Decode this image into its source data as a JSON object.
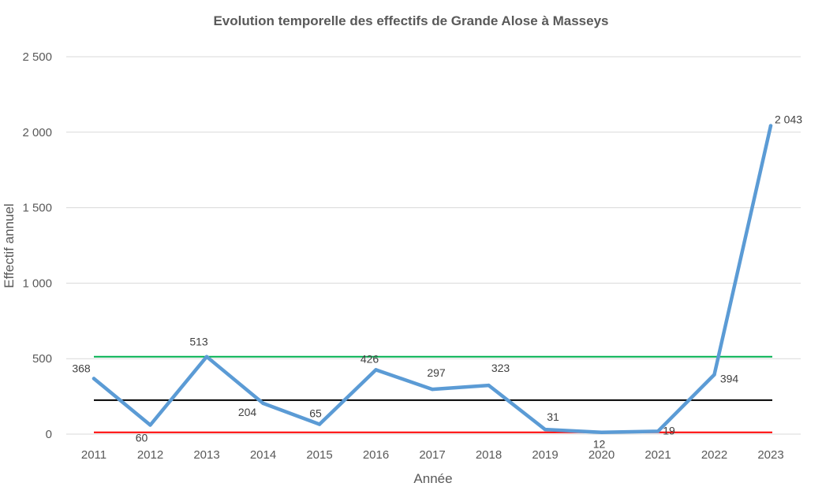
{
  "chart_data": {
    "type": "line",
    "title": "Evolution temporelle des effectifs de Grande Alose à Masseys",
    "xlabel": "Année",
    "ylabel": "Effectif annuel",
    "ylim": [
      0,
      2500
    ],
    "yticks": [
      0,
      500,
      1000,
      1500,
      2000,
      2500
    ],
    "ytick_labels": [
      "0",
      "500",
      "1 000",
      "1 500",
      "2 000",
      "2 500"
    ],
    "categories": [
      "2011",
      "2012",
      "2013",
      "2014",
      "2015",
      "2016",
      "2017",
      "2018",
      "2019",
      "2020",
      "2021",
      "2022",
      "2023"
    ],
    "series": [
      {
        "name": "",
        "color": "#5b9bd5",
        "values": [
          368,
          60,
          513,
          204,
          65,
          426,
          297,
          323,
          31,
          12,
          19,
          394,
          2043
        ],
        "labels": [
          "368",
          "60",
          "513",
          "204",
          "65",
          "426",
          "297",
          "323",
          "31",
          "12",
          "19",
          "394",
          "2 043"
        ]
      }
    ],
    "reference_lines": [
      {
        "value": 513,
        "color": "#00b050"
      },
      {
        "value": 225,
        "color": "#000000"
      },
      {
        "value": 12,
        "color": "#ff0000"
      }
    ],
    "grid": true,
    "legend": "none"
  }
}
